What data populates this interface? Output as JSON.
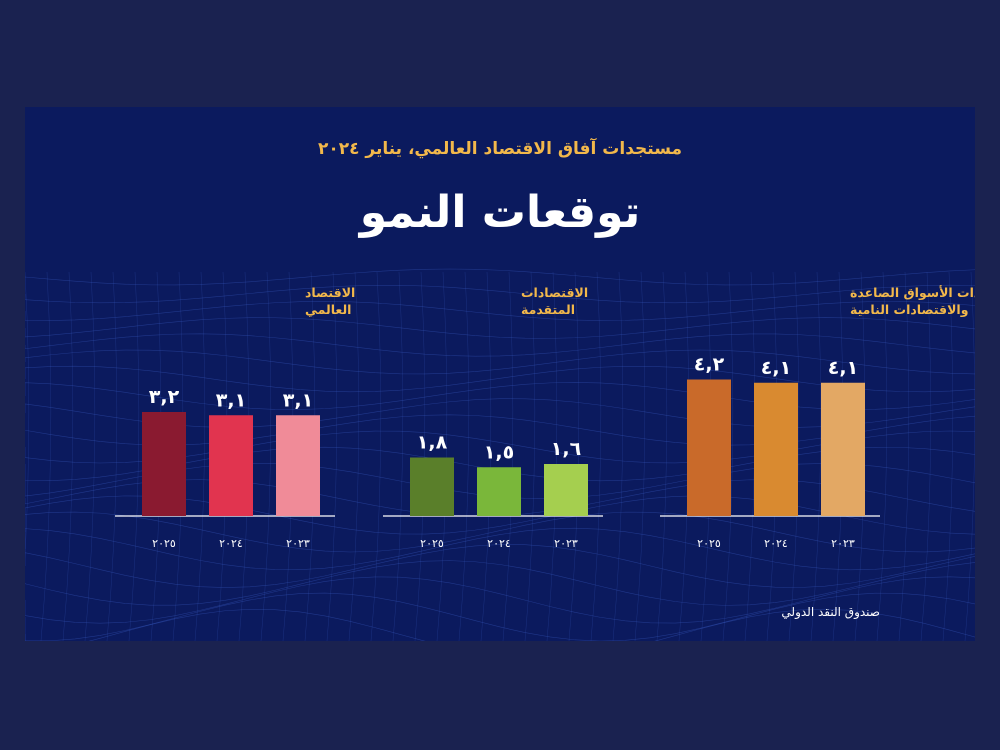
{
  "header": {
    "subtitle": "مستجدات آفاق الاقتصاد العالمي، يناير ٢٠٢٤",
    "title": "توقعات النمو"
  },
  "source": "صندوق النقد الدولي",
  "chart_data": {
    "type": "bar",
    "categories": [
      "٢٠٢٣",
      "٢٠٢٤",
      "٢٠٢٥"
    ],
    "groups": [
      {
        "name_lines": [
          "اقتصادات الأسواق الصاعدة",
          "والاقتصادات النامية"
        ],
        "values": [
          4.1,
          4.1,
          4.2
        ],
        "labels": [
          "٤,١",
          "٤,١",
          "٤,٢"
        ],
        "colors": [
          "#e3a864",
          "#d98a30",
          "#c96a2a"
        ]
      },
      {
        "name_lines": [
          "الاقتصادات",
          "المتقدمة"
        ],
        "values": [
          1.6,
          1.5,
          1.8
        ],
        "labels": [
          "١,٦",
          "١,٥",
          "١,٨"
        ],
        "colors": [
          "#a5cf4f",
          "#7ab73a",
          "#5a7f2a"
        ]
      },
      {
        "name_lines": [
          "الاقتصاد",
          "العالمي"
        ],
        "values": [
          3.1,
          3.1,
          3.2
        ],
        "labels": [
          "٣,١",
          "٣,١",
          "٣,٢"
        ],
        "colors": [
          "#f08b98",
          "#e1344f",
          "#8a1a30"
        ]
      }
    ],
    "ylim": [
      0,
      4.5
    ],
    "grid": false,
    "legend": "none",
    "colors": {
      "title": "#ffffff",
      "subtitle": "#f2b84b",
      "group_label": "#f2b84b",
      "background": "#0b1a5e"
    }
  }
}
